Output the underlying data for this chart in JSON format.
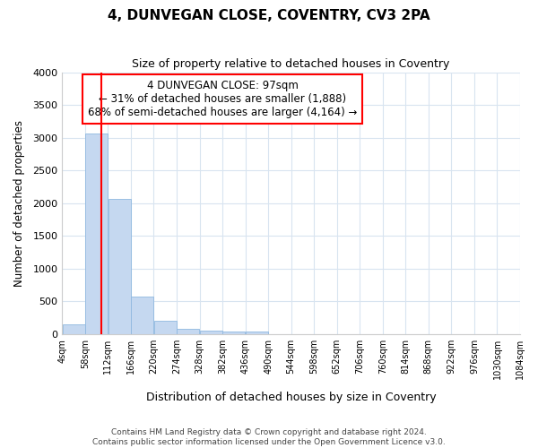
{
  "title": "4, DUNVEGAN CLOSE, COVENTRY, CV3 2PA",
  "subtitle": "Size of property relative to detached houses in Coventry",
  "xlabel": "Distribution of detached houses by size in Coventry",
  "ylabel": "Number of detached properties",
  "bins": [
    4,
    58,
    112,
    166,
    220,
    274,
    328,
    382,
    436,
    490,
    544,
    598,
    652,
    706,
    760,
    814,
    868,
    922,
    976,
    1030,
    1084
  ],
  "counts": [
    150,
    3060,
    2060,
    570,
    200,
    80,
    50,
    40,
    40,
    0,
    0,
    0,
    0,
    0,
    0,
    0,
    0,
    0,
    0,
    0
  ],
  "bar_color": "#c5d8f0",
  "bar_edge_color": "#8fb8e0",
  "red_line_x": 97,
  "annotation_line1": "4 DUNVEGAN CLOSE: 97sqm",
  "annotation_line2": "← 31% of detached houses are smaller (1,888)",
  "annotation_line3": "68% of semi-detached houses are larger (4,164) →",
  "annotation_box_color": "white",
  "annotation_box_edge": "red",
  "ylim": [
    0,
    4000
  ],
  "yticks": [
    0,
    500,
    1000,
    1500,
    2000,
    2500,
    3000,
    3500,
    4000
  ],
  "footer1": "Contains HM Land Registry data © Crown copyright and database right 2024.",
  "footer2": "Contains public sector information licensed under the Open Government Licence v3.0.",
  "bg_color": "#ffffff",
  "grid_color": "#d8e4f0"
}
